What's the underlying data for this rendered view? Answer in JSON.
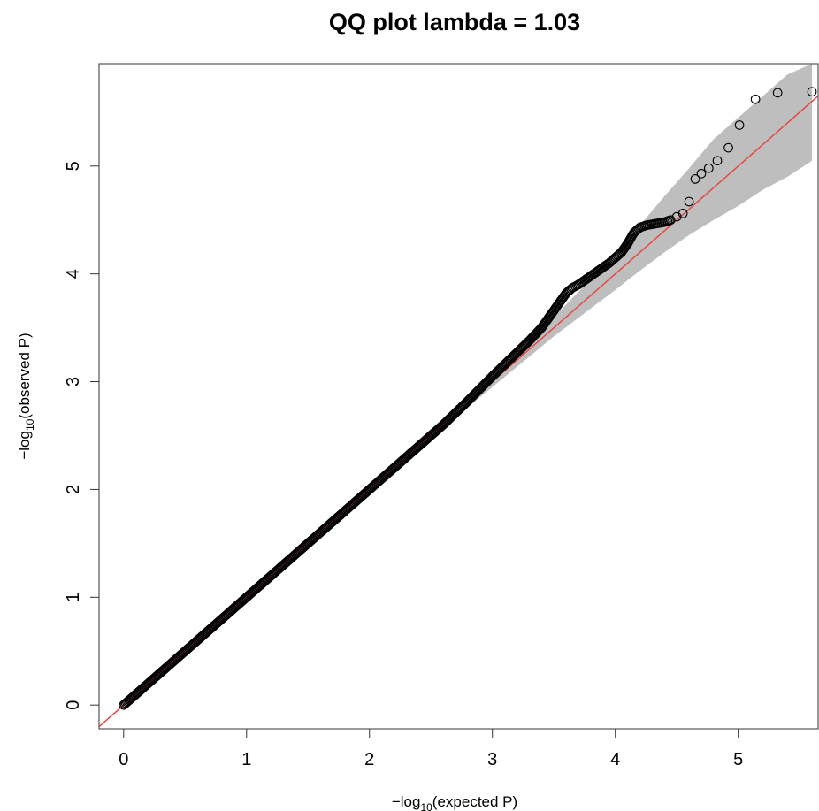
{
  "chart_data": {
    "type": "scatter",
    "title": "QQ plot lambda = 1.03",
    "xlabel": {
      "prefix": "−log",
      "subscript": "10",
      "suffix": "(expected P)"
    },
    "ylabel": {
      "prefix": "−log",
      "subscript": "10",
      "suffix": "(observed P)"
    },
    "xlim": [
      -0.2,
      5.65
    ],
    "ylim": [
      -0.22,
      5.95
    ],
    "x_ticks": [
      0,
      1,
      2,
      3,
      4,
      5
    ],
    "x_tick_labels": [
      "0",
      "1",
      "2",
      "3",
      "4",
      "5"
    ],
    "y_ticks": [
      0,
      1,
      2,
      3,
      4,
      5
    ],
    "y_tick_labels": [
      "0",
      "1",
      "2",
      "3",
      "4",
      "5"
    ],
    "grid": false,
    "reference_line": {
      "slope": 1,
      "intercept": 0,
      "color": "#e8423c"
    },
    "confidence_band": {
      "color": "#bebebe",
      "x": [
        2.5,
        3.0,
        3.5,
        3.8,
        4.0,
        4.2,
        4.4,
        4.6,
        4.8,
        5.0,
        5.2,
        5.4,
        5.6
      ],
      "upper": [
        2.53,
        3.06,
        3.6,
        3.95,
        4.2,
        4.45,
        4.72,
        4.98,
        5.25,
        5.45,
        5.65,
        5.85,
        5.95
      ],
      "lower": [
        2.48,
        2.95,
        3.42,
        3.68,
        3.85,
        4.03,
        4.2,
        4.36,
        4.5,
        4.63,
        4.78,
        4.9,
        5.05
      ]
    },
    "series": [
      {
        "marker": "open-circle",
        "color": "#000000",
        "x": [
          0.0,
          0.2,
          0.4,
          0.6,
          0.8,
          1.0,
          1.2,
          1.4,
          1.6,
          1.8,
          2.0,
          2.2,
          2.4,
          2.6,
          2.8,
          3.0,
          3.1,
          3.2,
          3.3,
          3.4,
          3.45,
          3.5,
          3.55,
          3.6,
          3.65,
          3.7,
          3.75,
          3.8,
          3.85,
          3.9,
          3.95,
          4.0,
          4.05,
          4.1,
          4.15,
          4.2,
          4.25,
          4.3,
          4.35,
          4.4,
          4.45,
          4.5,
          4.55,
          4.6,
          4.65,
          4.7,
          4.76,
          4.83,
          4.92,
          5.01,
          5.14,
          5.32,
          5.6
        ],
        "y": [
          0.0,
          0.2,
          0.4,
          0.6,
          0.8,
          1.0,
          1.2,
          1.4,
          1.6,
          1.8,
          2.0,
          2.2,
          2.4,
          2.6,
          2.82,
          3.05,
          3.16,
          3.27,
          3.38,
          3.5,
          3.58,
          3.66,
          3.74,
          3.82,
          3.87,
          3.9,
          3.94,
          3.98,
          4.02,
          4.06,
          4.1,
          4.15,
          4.2,
          4.28,
          4.38,
          4.43,
          4.45,
          4.46,
          4.47,
          4.48,
          4.5,
          4.53,
          4.56,
          4.67,
          4.88,
          4.93,
          4.98,
          5.05,
          5.17,
          5.38,
          5.62,
          5.68,
          5.69
        ]
      }
    ]
  }
}
